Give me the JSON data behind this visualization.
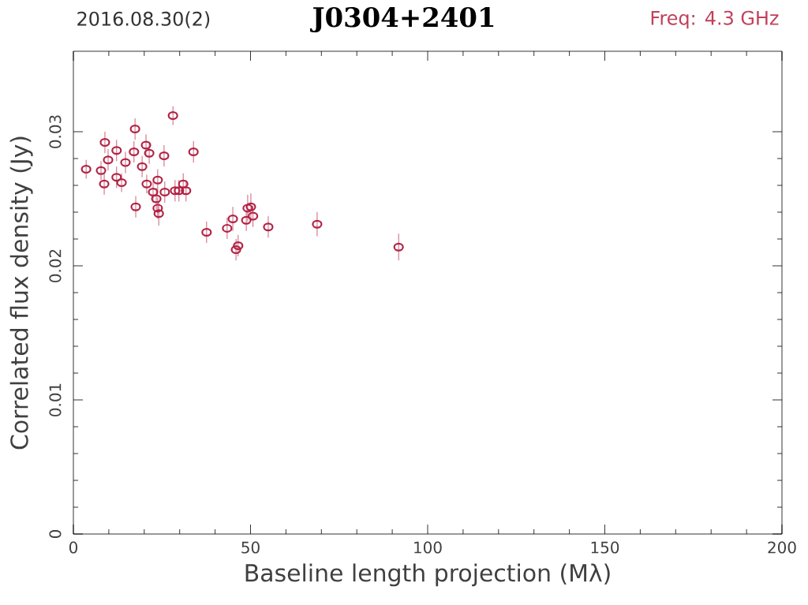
{
  "chart_data": {
    "type": "scatter",
    "title": "J0304+2401",
    "annotations": [
      "2016.08.30(2)",
      "Freq: 4.3 GHz"
    ],
    "xlabel": "Baseline length projection (Mλ)",
    "ylabel": "Correlated flux density (Jy)",
    "xlim": [
      0,
      200
    ],
    "xticks": [
      0,
      50,
      100,
      150,
      200
    ],
    "ylim": [
      0,
      0.036
    ],
    "yticks": [
      0,
      0.01,
      0.02,
      0.03
    ],
    "marker": "circle",
    "grid": false,
    "series": [
      {
        "color": "#b22244",
        "x": [
          3.6,
          7.8,
          8.9,
          8.7,
          9.8,
          12.2,
          12.2,
          13.6,
          14.7,
          17.4,
          17.1,
          17.6,
          19.4,
          20.5,
          20.7,
          21.4,
          22.5,
          23.4,
          23.8,
          23.8,
          24.1,
          25.6,
          25.8,
          28.1,
          28.7,
          29.8,
          31.0,
          31.8,
          33.9,
          37.6,
          43.4,
          45.0,
          45.9,
          46.5,
          48.8,
          49.2,
          50.1,
          50.7,
          55.0,
          68.8,
          91.8
        ],
        "values": [
          0.0272,
          0.0271,
          0.0292,
          0.0261,
          0.0279,
          0.0286,
          0.0266,
          0.0262,
          0.0277,
          0.0302,
          0.0285,
          0.0244,
          0.0274,
          0.029,
          0.0261,
          0.0284,
          0.0255,
          0.025,
          0.0264,
          0.0243,
          0.0239,
          0.0282,
          0.0255,
          0.0312,
          0.0256,
          0.0256,
          0.0261,
          0.0256,
          0.0285,
          0.0225,
          0.0228,
          0.0235,
          0.0212,
          0.0215,
          0.0234,
          0.0243,
          0.0244,
          0.0237,
          0.0229,
          0.0231,
          0.0214
        ],
        "errors": [
          0.0007,
          0.0007,
          0.0008,
          0.0008,
          0.0008,
          0.0008,
          0.0008,
          0.0007,
          0.0008,
          0.0008,
          0.0008,
          0.0008,
          0.0008,
          0.0008,
          0.0007,
          0.0008,
          0.0008,
          0.0008,
          0.0008,
          0.0008,
          0.0009,
          0.0008,
          0.0008,
          0.0007,
          0.0008,
          0.0008,
          0.0008,
          0.0008,
          0.0008,
          0.0008,
          0.0008,
          0.0009,
          0.0008,
          0.0008,
          0.0008,
          0.001,
          0.001,
          0.0008,
          0.0008,
          0.0009,
          0.001
        ]
      }
    ]
  }
}
